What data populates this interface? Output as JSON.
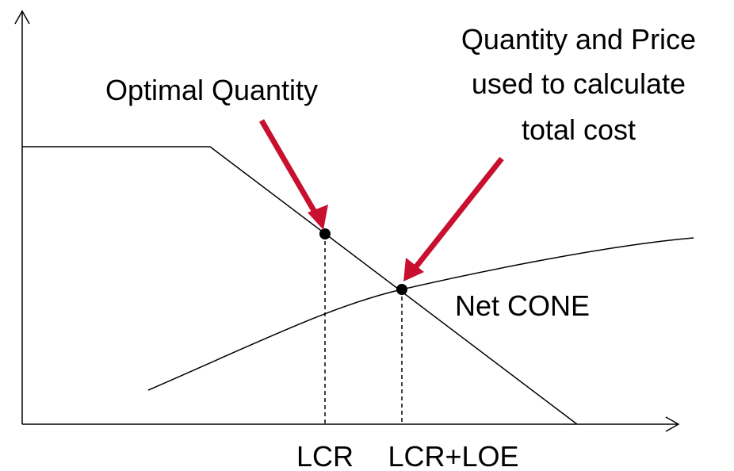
{
  "annotations": {
    "optimal": "Optimal Quantity",
    "price_lines": [
      "Quantity and Price",
      "used to calculate",
      "total cost"
    ],
    "curve_label": "Net CONE"
  },
  "x_labels": [
    "LCR",
    "LCR+LOE"
  ]
}
